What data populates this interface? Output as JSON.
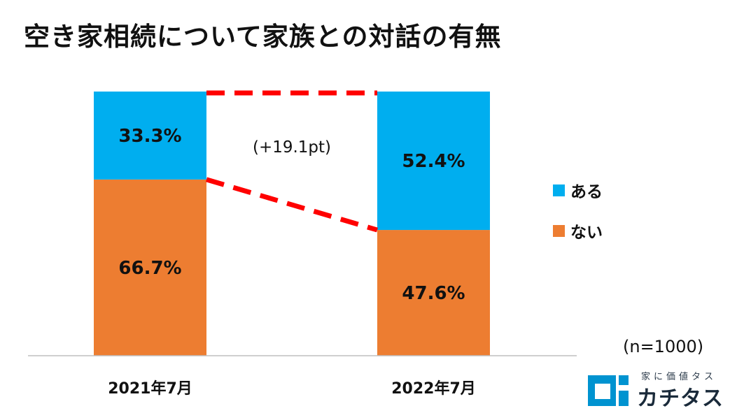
{
  "title": "空き家相続について家族との対話の有無",
  "chart_data": {
    "type": "bar",
    "stacked": true,
    "categories": [
      "2021年7月",
      "2022年7月"
    ],
    "series": [
      {
        "name": "ある",
        "values": [
          33.3,
          52.4
        ],
        "labels": [
          "33.3%",
          "52.4%"
        ],
        "color": "#00AEEF"
      },
      {
        "name": "ない",
        "values": [
          66.7,
          47.6
        ],
        "labels": [
          "66.7%",
          "47.6%"
        ],
        "color": "#ED7D31"
      }
    ],
    "annotation": "(+19.1pt)",
    "ylim": [
      0,
      100
    ],
    "legend_position": "right",
    "grid": false
  },
  "note": "(n=1000)",
  "logo": {
    "tagline": "家に価値タス",
    "name": "カチタス",
    "color": "#0093D0"
  }
}
